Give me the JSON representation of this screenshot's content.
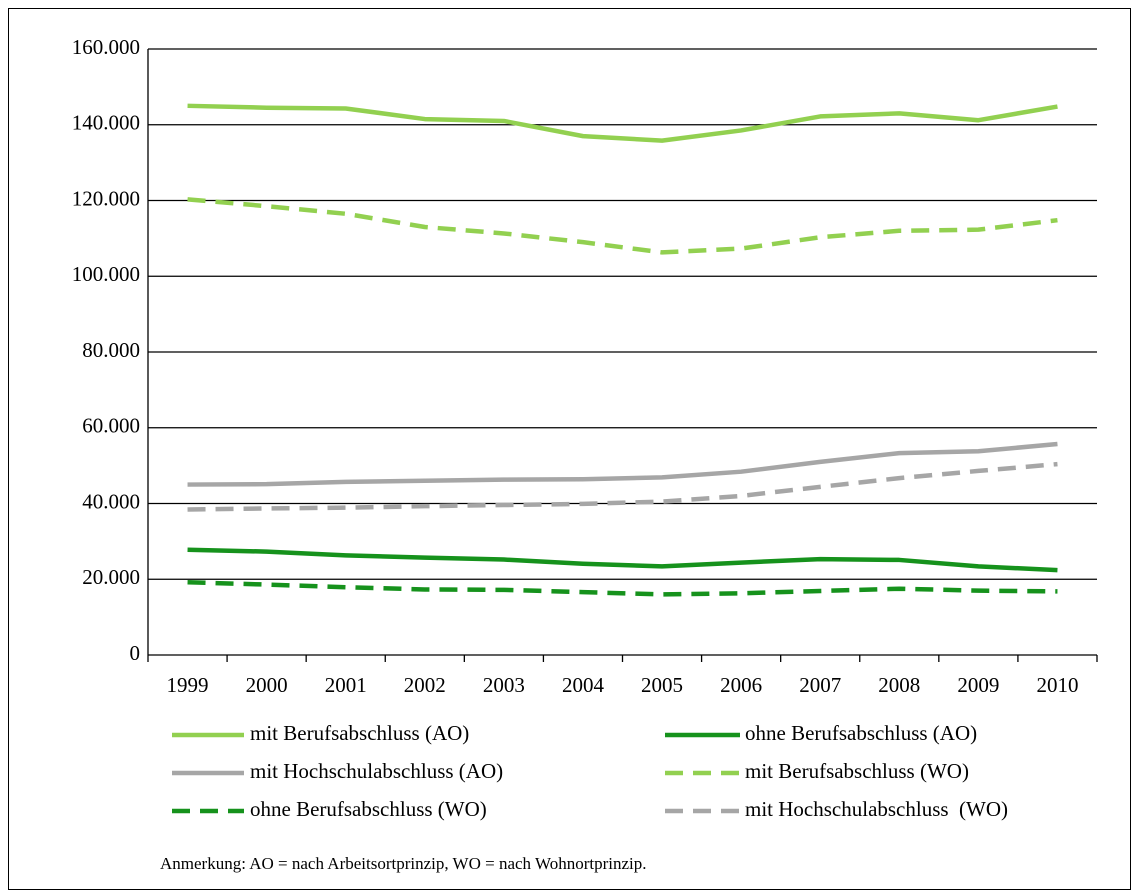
{
  "chart_data": {
    "type": "line",
    "categories": [
      "1999",
      "2000",
      "2001",
      "2002",
      "2003",
      "2004",
      "2005",
      "2006",
      "2007",
      "2008",
      "2009",
      "2010"
    ],
    "series": [
      {
        "name": "mit Berufsabschluss (AO)",
        "color": "#92d050",
        "line_style": "solid",
        "values": [
          145000,
          144500,
          144300,
          141500,
          141000,
          137000,
          135800,
          138500,
          142200,
          143000,
          141200,
          144800
        ]
      },
      {
        "name": "ohne Berufsabschluss (AO)",
        "color": "#16921c",
        "line_style": "solid",
        "values": [
          27800,
          27300,
          26300,
          25700,
          25200,
          24100,
          23400,
          24400,
          25300,
          25100,
          23400,
          22400
        ]
      },
      {
        "name": "mit Hochschulabschluss (AO)",
        "color": "#a6a6a6",
        "line_style": "solid",
        "values": [
          45000,
          45100,
          45700,
          46000,
          46300,
          46400,
          46900,
          48400,
          51000,
          53300,
          53800,
          55700
        ]
      },
      {
        "name": "mit Berufsabschluss (WO)",
        "color": "#92d050",
        "line_style": "dashed",
        "values": [
          120300,
          118500,
          116500,
          113000,
          111300,
          109000,
          106300,
          107300,
          110300,
          112000,
          112300,
          114800
        ]
      },
      {
        "name": "ohne Berufsabschluss (WO)",
        "color": "#16921c",
        "line_style": "dashed",
        "values": [
          19200,
          18600,
          17900,
          17300,
          17200,
          16600,
          16000,
          16300,
          16900,
          17500,
          17000,
          16800
        ]
      },
      {
        "name": "mit Hochschulabschluss  (WO)",
        "color": "#a6a6a6",
        "line_style": "dashed",
        "values": [
          38400,
          38700,
          38900,
          39300,
          39600,
          39900,
          40500,
          42000,
          44400,
          46700,
          48600,
          50400
        ]
      }
    ],
    "ylim": [
      0,
      160000
    ],
    "yticks": [
      0,
      {
        "value": 20000,
        "label": "20.000"
      },
      {
        "value": 40000,
        "label": "40.000"
      },
      {
        "value": 60000,
        "label": "60.000"
      },
      {
        "value": 80000,
        "label": "80.000"
      },
      {
        "value": 100000,
        "label": "100.000"
      },
      {
        "value": 120000,
        "label": "120.000"
      },
      {
        "value": 140000,
        "label": "140.000"
      },
      {
        "value": 160000,
        "label": "160.000"
      }
    ],
    "grid": true,
    "legend": "bottom",
    "note": "Anmerkung: AO = nach Arbeitsortprinzip, WO = nach Wohnortprinzip."
  }
}
